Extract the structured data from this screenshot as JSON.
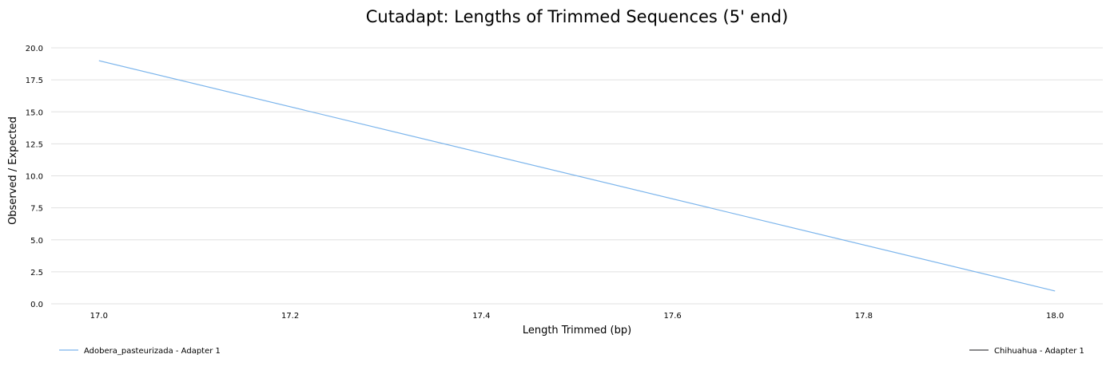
{
  "chart_data": {
    "type": "line",
    "title": "Cutadapt: Lengths of Trimmed Sequences (5' end)",
    "xlabel": "Length Trimmed (bp)",
    "ylabel": "Observed / Expected",
    "xlim": [
      16.95,
      18.05
    ],
    "ylim": [
      0,
      20
    ],
    "x_ticks": [
      17.0,
      17.2,
      17.4,
      17.6,
      17.8,
      18.0
    ],
    "x_tick_labels": [
      "17.0",
      "17.2",
      "17.4",
      "17.6",
      "17.8",
      "18.0"
    ],
    "y_ticks": [
      0,
      2.5,
      5,
      7.5,
      10,
      12.5,
      15,
      17.5,
      20
    ],
    "y_tick_labels": [
      "0.0",
      "2.5",
      "5.0",
      "7.5",
      "10.0",
      "12.5",
      "15.0",
      "17.5",
      "20.0"
    ],
    "grid": "horizontal",
    "legend_placement": "bottom",
    "series": [
      {
        "name": "Adobera_pasteurizada - Adapter 1",
        "color": "#7cb5ec",
        "x": [
          17,
          18
        ],
        "y": [
          19,
          1
        ]
      },
      {
        "name": "Chihuahua - Adapter 1",
        "color": "#434348",
        "x": [],
        "y": []
      }
    ]
  }
}
